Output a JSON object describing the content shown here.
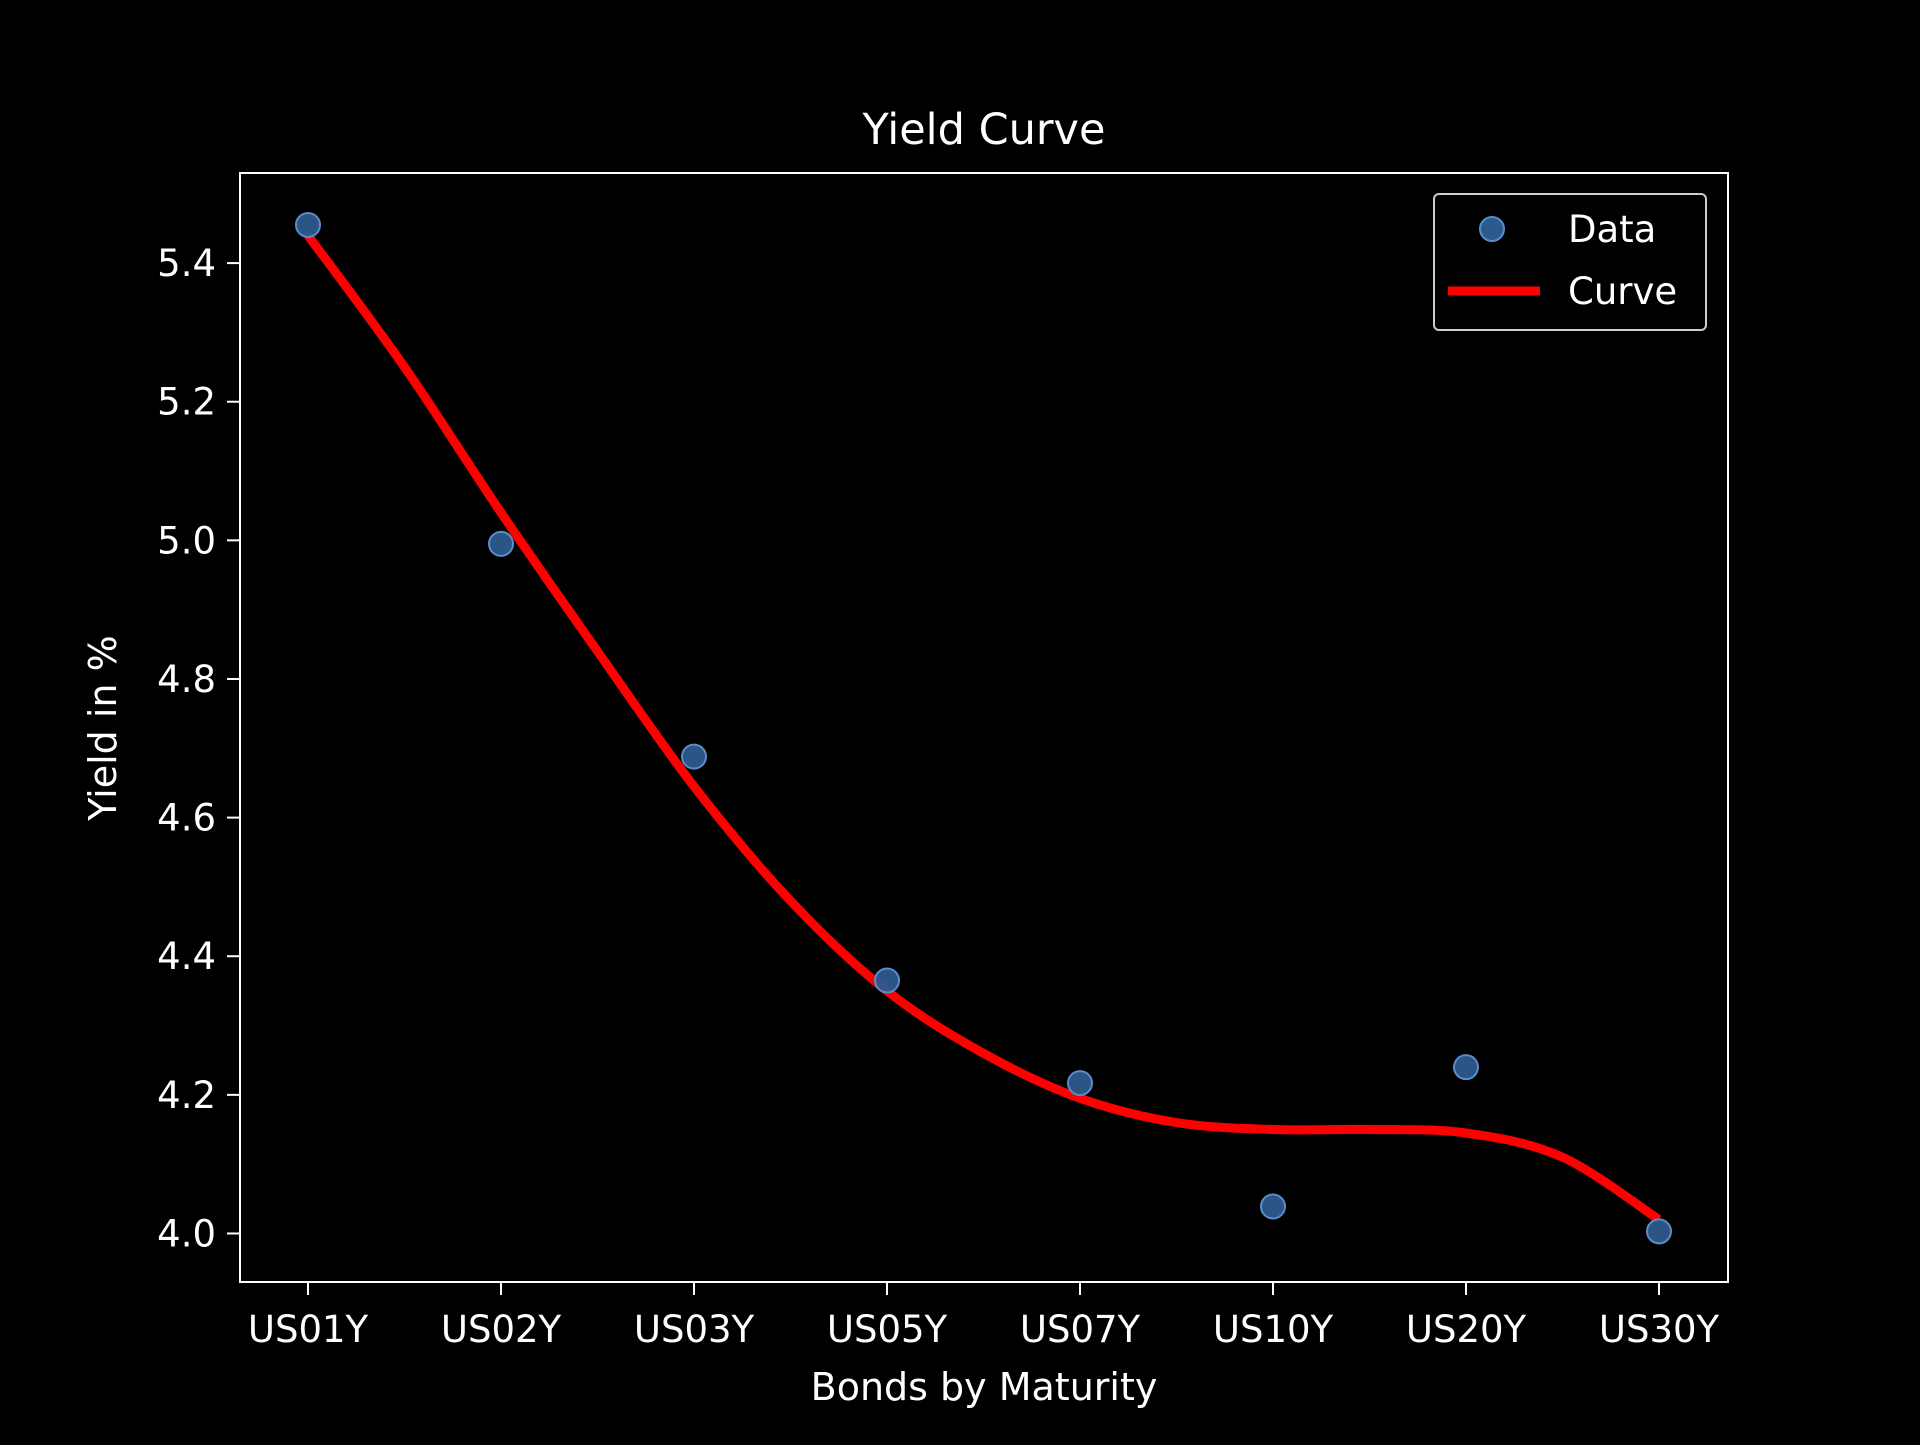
{
  "colors": {
    "background": "#000000",
    "foreground": "#ffffff",
    "data_marker": "#2d5a8c",
    "data_marker_edge": "#5a8cc8",
    "curve": "#ff0000"
  },
  "chart_data": {
    "type": "scatter",
    "title": "Yield Curve",
    "xlabel": "Bonds by Maturity",
    "ylabel": "Yield in %",
    "categories": [
      "US01Y",
      "US02Y",
      "US03Y",
      "US05Y",
      "US07Y",
      "US10Y",
      "US20Y",
      "US30Y"
    ],
    "ylim": [
      3.93,
      5.53
    ],
    "yticks": [
      "4.0",
      "4.2",
      "4.4",
      "4.6",
      "4.8",
      "5.0",
      "5.2",
      "5.4"
    ],
    "grid": false,
    "legend_position": "top-right",
    "series": [
      {
        "name": "Data",
        "type": "scatter",
        "values": [
          5.455,
          4.995,
          4.688,
          4.365,
          4.217,
          4.039,
          4.24,
          4.003
        ]
      },
      {
        "name": "Curve",
        "type": "line",
        "x": [
          0,
          0.5,
          1,
          1.5,
          2,
          2.5,
          3,
          3.5,
          4,
          4.5,
          5,
          5.5,
          6,
          6.5,
          7
        ],
        "values": [
          5.44,
          5.25,
          5.04,
          4.84,
          4.645,
          4.48,
          4.35,
          4.26,
          4.195,
          4.16,
          4.15,
          4.15,
          4.145,
          4.11,
          4.02
        ]
      }
    ]
  }
}
